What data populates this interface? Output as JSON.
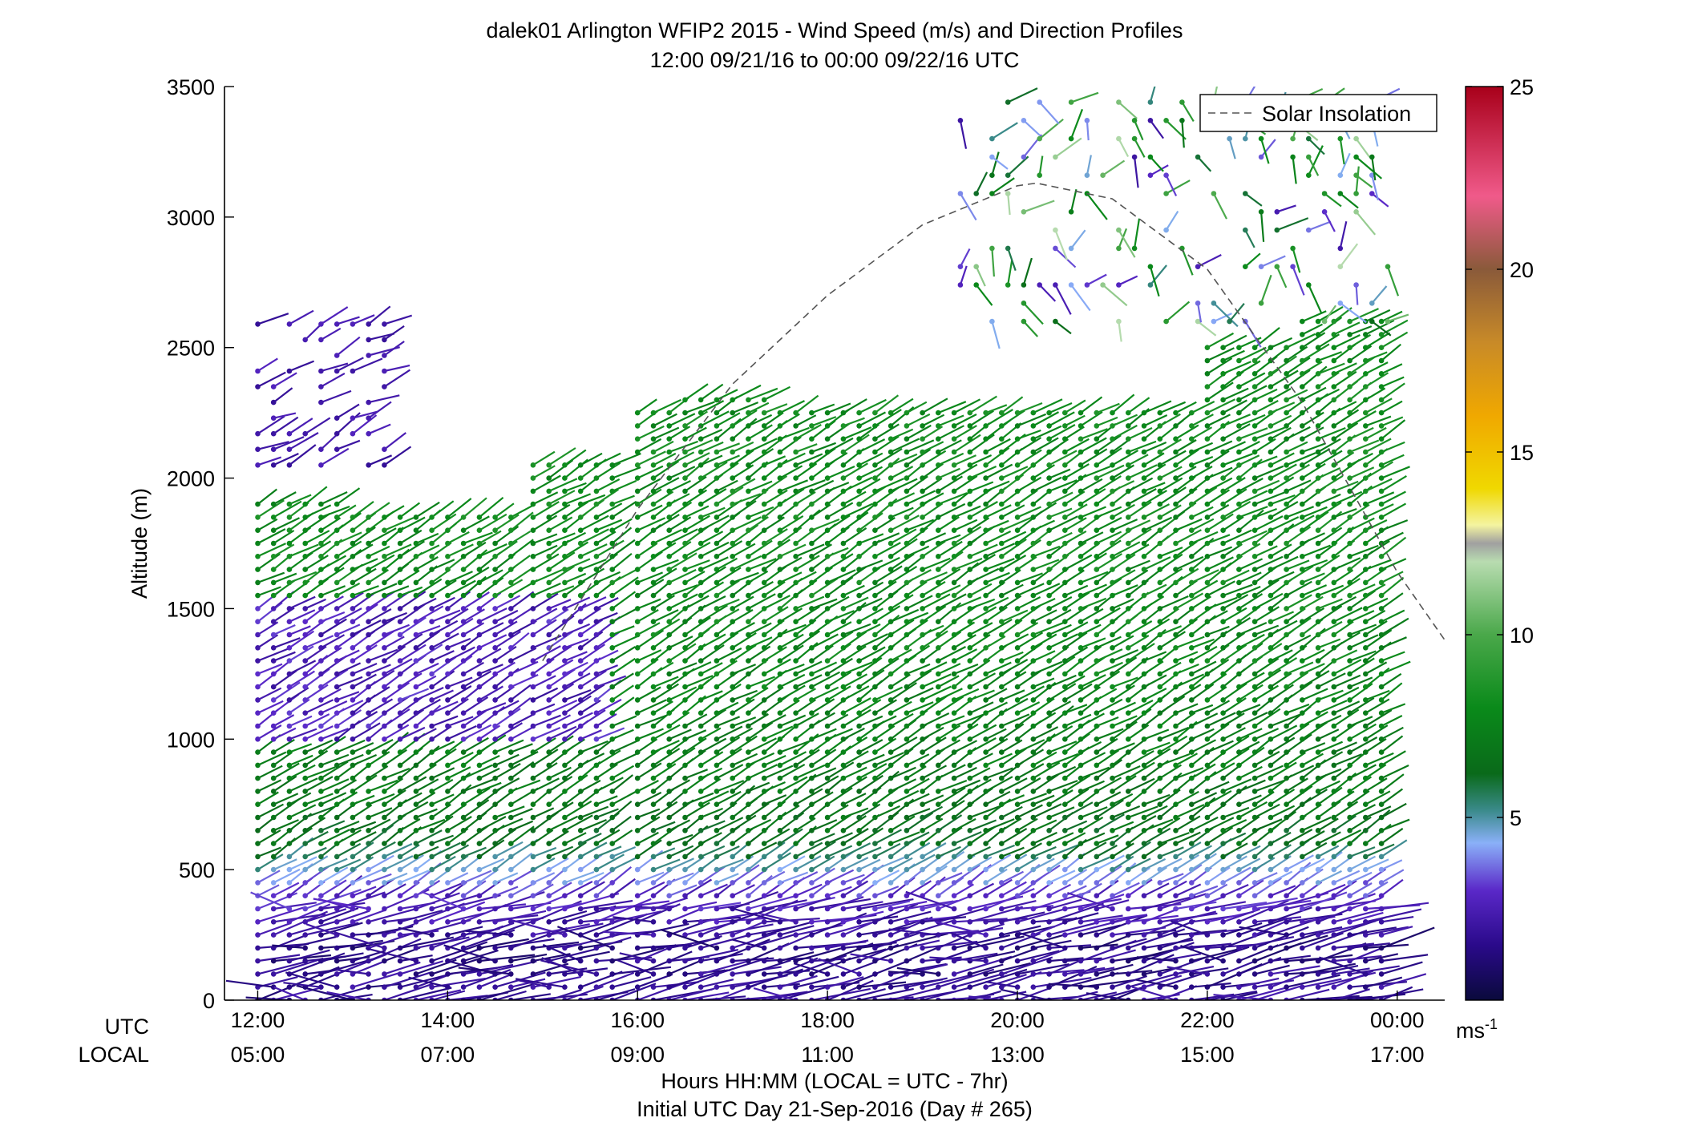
{
  "chart_data": {
    "type": "wind-barb-profile",
    "title": "dalek01 Arlington WFIP2 2015 - Wind Speed (m/s) and Direction Profiles",
    "subtitle": "12:00 09/21/16 to 00:00 09/22/16  UTC",
    "ylabel": "Altitude (m)",
    "xlabel": "Hours HH:MM  (LOCAL = UTC - 7hr)",
    "xlabel2": "Initial UTC Day 21-Sep-2016 (Day # 265)",
    "x_row_labels": [
      "UTC",
      "LOCAL"
    ],
    "xlim_hours": [
      11.65,
      24.5
    ],
    "ylim": [
      0,
      3500
    ],
    "y_ticks": [
      {
        "value": 0,
        "label": "0"
      },
      {
        "value": 500,
        "label": "500"
      },
      {
        "value": 1000,
        "label": "1000"
      },
      {
        "value": 1500,
        "label": "1500"
      },
      {
        "value": 2000,
        "label": "2000"
      },
      {
        "value": 2500,
        "label": "2500"
      },
      {
        "value": 3000,
        "label": "3000"
      },
      {
        "value": 3500,
        "label": "3500"
      }
    ],
    "x_ticks": [
      {
        "hour": 12,
        "utc": "12:00",
        "local": "05:00"
      },
      {
        "hour": 14,
        "utc": "14:00",
        "local": "07:00"
      },
      {
        "hour": 16,
        "utc": "16:00",
        "local": "09:00"
      },
      {
        "hour": 18,
        "utc": "18:00",
        "local": "11:00"
      },
      {
        "hour": 20,
        "utc": "20:00",
        "local": "13:00"
      },
      {
        "hour": 22,
        "utc": "22:00",
        "local": "15:00"
      },
      {
        "hour": 24,
        "utc": "00:00",
        "local": "17:00"
      }
    ],
    "legend": {
      "label": "Solar Insolation",
      "position": "top-right",
      "style": "dashed",
      "color": "#555555"
    },
    "solar_insolation_curve": {
      "hours": [
        15.0,
        16.0,
        17.0,
        18.0,
        19.0,
        20.0,
        20.2,
        21.0,
        22.0,
        23.0,
        24.0,
        24.5
      ],
      "altitudes": [
        1300,
        1880,
        2360,
        2700,
        2970,
        3120,
        3130,
        3070,
        2800,
        2290,
        1640,
        1380
      ]
    },
    "colorbar": {
      "min": 0,
      "max": 25,
      "ticks": [
        5,
        10,
        15,
        20,
        25
      ],
      "unit_label": "ms",
      "unit_exponent": "-1",
      "stops": [
        {
          "v": 0,
          "color": "#0a0a3c"
        },
        {
          "v": 1.5,
          "color": "#2a0a8a"
        },
        {
          "v": 3,
          "color": "#5a28c8"
        },
        {
          "v": 4.3,
          "color": "#8ab0f8"
        },
        {
          "v": 5.2,
          "color": "#3a8a8a"
        },
        {
          "v": 6.2,
          "color": "#0a6a1a"
        },
        {
          "v": 8,
          "color": "#0a8a1a"
        },
        {
          "v": 10,
          "color": "#4aa84a"
        },
        {
          "v": 12,
          "color": "#b8dcb0"
        },
        {
          "v": 12.5,
          "color": "#a0a0a0"
        },
        {
          "v": 13,
          "color": "#f4f4a0"
        },
        {
          "v": 14,
          "color": "#f0d800"
        },
        {
          "v": 16,
          "color": "#f0a800"
        },
        {
          "v": 18,
          "color": "#c88a28"
        },
        {
          "v": 20,
          "color": "#8a5a3a"
        },
        {
          "v": 22,
          "color": "#f05a8a"
        },
        {
          "v": 25,
          "color": "#a8001a"
        }
      ]
    },
    "wind_profiles": {
      "time_step_hours": 0.1667,
      "altitude_step_m": 50,
      "columns": [
        {
          "hour_start": 12.0,
          "hour_end": 12.9,
          "top_m": 1920
        },
        {
          "hour_start": 13.0,
          "hour_end": 14.8,
          "top_m": 1860
        },
        {
          "hour_start": 14.9,
          "hour_end": 15.9,
          "top_m": 2050
        },
        {
          "hour_start": 16.0,
          "hour_end": 16.4,
          "top_m": 2250
        },
        {
          "hour_start": 16.5,
          "hour_end": 17.4,
          "top_m": 2330
        },
        {
          "hour_start": 17.5,
          "hour_end": 21.9,
          "top_m": 2270
        },
        {
          "hour_start": 22.0,
          "hour_end": 22.9,
          "top_m": 2520
        },
        {
          "hour_start": 23.0,
          "hour_end": 24.0,
          "top_m": 2620
        }
      ],
      "speed_by_altitude_m_s": [
        {
          "alt": 0,
          "speed": 1.8
        },
        {
          "alt": 200,
          "speed": 1.5
        },
        {
          "alt": 400,
          "speed": 3.0
        },
        {
          "alt": 600,
          "speed": 6.5
        },
        {
          "alt": 900,
          "speed": 7.2
        },
        {
          "alt": 1300,
          "speed": 7.8
        },
        {
          "alt": 1800,
          "speed": 8.0
        },
        {
          "alt": 2300,
          "speed": 8.0
        }
      ],
      "morning_low_speed_layer": {
        "hour_start": 12.0,
        "hour_end": 15.6,
        "alt_bottom": 1000,
        "alt_top": 1500,
        "speed": 2.6
      },
      "morning_upper_isolated": {
        "hour_start": 12.0,
        "hour_end": 13.5,
        "alt_bottom": 2050,
        "alt_top": 2600,
        "speed": 1.8
      },
      "afternoon_upper_scatter": {
        "hour_start": 19.4,
        "hour_end": 24.0,
        "alt_bottom": 2600,
        "alt_top": 3480
      }
    }
  }
}
